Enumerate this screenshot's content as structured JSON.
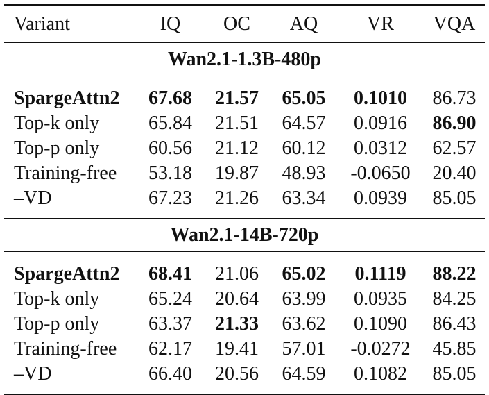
{
  "columns": [
    "Variant",
    "IQ",
    "OC",
    "AQ",
    "VR",
    "VQA"
  ],
  "sections": [
    {
      "title": "Wan2.1-1.3B-480p",
      "rows": [
        {
          "variant": "SpargeAttn2",
          "iq": "67.68",
          "oc": "21.57",
          "aq": "65.05",
          "vr": "0.1010",
          "vqa": "86.73",
          "bold": [
            "variant",
            "iq",
            "oc",
            "aq",
            "vr"
          ]
        },
        {
          "variant": "Top-k only",
          "iq": "65.84",
          "oc": "21.51",
          "aq": "64.57",
          "vr": "0.0916",
          "vqa": "86.90",
          "bold": [
            "vqa"
          ]
        },
        {
          "variant": "Top-p only",
          "iq": "60.56",
          "oc": "21.12",
          "aq": "60.12",
          "vr": "0.0312",
          "vqa": "62.57",
          "bold": []
        },
        {
          "variant": "Training-free",
          "iq": "53.18",
          "oc": "19.87",
          "aq": "48.93",
          "vr": "-0.0650",
          "vqa": "20.40",
          "bold": []
        },
        {
          "variant": "–VD",
          "iq": "67.23",
          "oc": "21.26",
          "aq": "63.34",
          "vr": "0.0939",
          "vqa": "85.05",
          "bold": []
        }
      ]
    },
    {
      "title": "Wan2.1-14B-720p",
      "rows": [
        {
          "variant": "SpargeAttn2",
          "iq": "68.41",
          "oc": "21.06",
          "aq": "65.02",
          "vr": "0.1119",
          "vqa": "88.22",
          "bold": [
            "variant",
            "iq",
            "aq",
            "vr",
            "vqa"
          ]
        },
        {
          "variant": "Top-k only",
          "iq": "65.24",
          "oc": "20.64",
          "aq": "63.99",
          "vr": "0.0935",
          "vqa": "84.25",
          "bold": []
        },
        {
          "variant": "Top-p only",
          "iq": "63.37",
          "oc": "21.33",
          "aq": "63.62",
          "vr": "0.1090",
          "vqa": "86.43",
          "bold": [
            "oc"
          ]
        },
        {
          "variant": "Training-free",
          "iq": "62.17",
          "oc": "19.41",
          "aq": "57.01",
          "vr": "-0.0272",
          "vqa": "45.85",
          "bold": []
        },
        {
          "variant": "–VD",
          "iq": "66.40",
          "oc": "20.56",
          "aq": "64.59",
          "vr": "0.1082",
          "vqa": "85.05",
          "bold": []
        }
      ]
    }
  ]
}
